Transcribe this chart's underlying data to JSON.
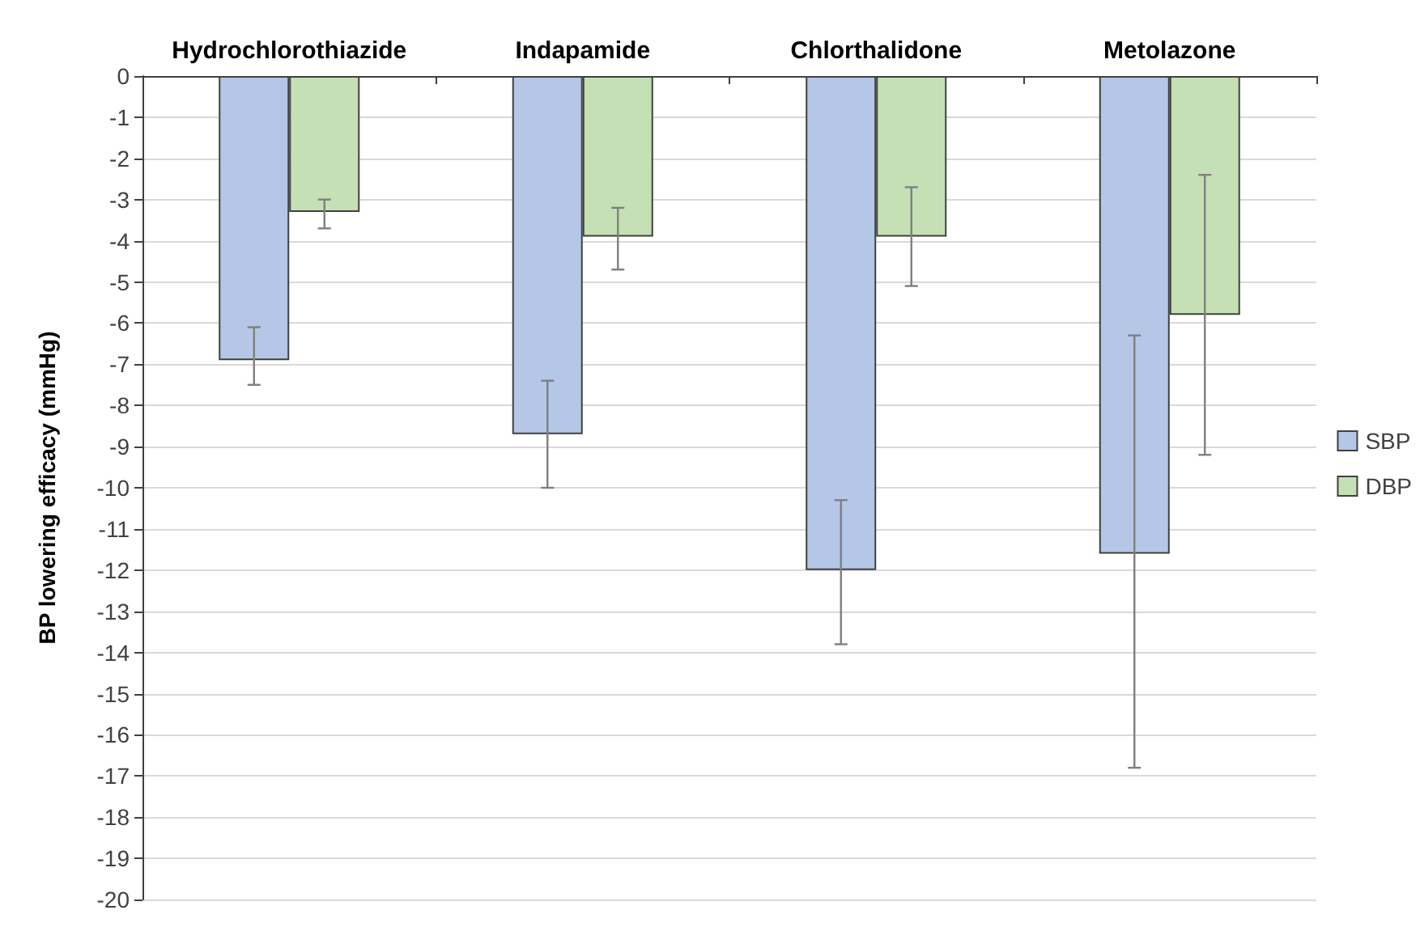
{
  "chart_data": {
    "type": "bar",
    "categories": [
      "Hydrochlorothiazide",
      "Indapamide",
      "Chlorthalidone",
      "Metolazone"
    ],
    "ylabel": "BP lowering efficacy (mmHg)",
    "series": [
      {
        "name": "SBP",
        "color": "#b4c7e7",
        "values": [
          -6.9,
          -8.7,
          -12.0,
          -11.6
        ],
        "errors": [
          [
            -7.5,
            -6.1
          ],
          [
            -10.0,
            -7.4
          ],
          [
            -13.8,
            -10.3
          ],
          [
            -16.8,
            -6.3
          ]
        ]
      },
      {
        "name": "DBP",
        "color": "#c5e0b4",
        "values": [
          -3.3,
          -3.9,
          -3.9,
          -5.8
        ],
        "errors": [
          [
            -3.7,
            -3.0
          ],
          [
            -4.7,
            -3.2
          ],
          [
            -5.1,
            -2.7
          ],
          [
            -9.2,
            -2.4
          ]
        ]
      }
    ],
    "ylim": [
      -20,
      0
    ],
    "yticks": [
      0,
      -1,
      -2,
      -3,
      -4,
      -5,
      -6,
      -7,
      -8,
      -9,
      -10,
      -11,
      -12,
      -13,
      -14,
      -15,
      -16,
      -17,
      -18,
      -19,
      -20
    ],
    "grid": "y",
    "legend": "right"
  }
}
